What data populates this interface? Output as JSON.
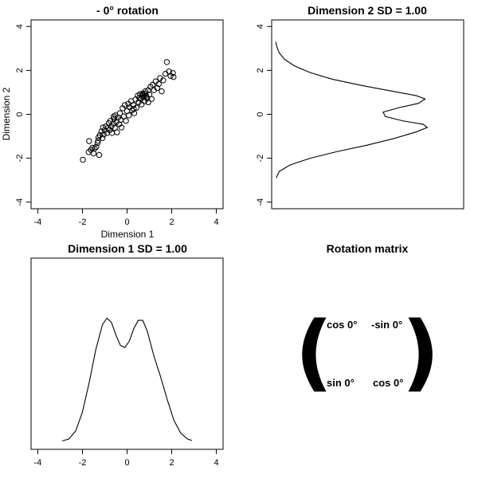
{
  "chart_data": [
    {
      "type": "scatter",
      "title": "-  0° rotation",
      "xlabel": "Dimension 1",
      "ylabel": "Dimension 2",
      "xlim": [
        -4.3,
        4.3
      ],
      "ylim": [
        -4.3,
        4.3
      ],
      "xticks": [
        "-4",
        "-2",
        "0",
        "2",
        "4"
      ],
      "yticks": [
        "-4",
        "-2",
        "0",
        "2",
        "4"
      ],
      "marker": "open-circle",
      "points": [
        [
          -1.98,
          -2.07
        ],
        [
          -1.72,
          -1.72
        ],
        [
          -1.62,
          -1.62
        ],
        [
          -1.7,
          -1.22
        ],
        [
          -1.55,
          -1.52
        ],
        [
          -1.5,
          -1.78
        ],
        [
          -1.45,
          -1.55
        ],
        [
          -1.38,
          -1.48
        ],
        [
          -1.32,
          -1.3
        ],
        [
          -1.28,
          -1.05
        ],
        [
          -1.22,
          -0.95
        ],
        [
          -1.25,
          -1.85
        ],
        [
          -1.15,
          -0.78
        ],
        [
          -1.1,
          -1.08
        ],
        [
          -1.08,
          -0.6
        ],
        [
          -1.05,
          -0.92
        ],
        [
          -1.0,
          -0.72
        ],
        [
          -0.95,
          -0.55
        ],
        [
          -0.9,
          -0.85
        ],
        [
          -0.85,
          -0.62
        ],
        [
          -0.82,
          -0.4
        ],
        [
          -0.78,
          -0.72
        ],
        [
          -0.75,
          -0.3
        ],
        [
          -0.7,
          -0.55
        ],
        [
          -0.68,
          -0.85
        ],
        [
          -0.62,
          -0.42
        ],
        [
          -0.58,
          -0.2
        ],
        [
          -0.55,
          -0.62
        ],
        [
          -0.52,
          -0.05
        ],
        [
          -0.48,
          -0.35
        ],
        [
          -0.45,
          -0.82
        ],
        [
          -0.4,
          -0.15
        ],
        [
          -0.35,
          -0.45
        ],
        [
          -0.32,
          0.05
        ],
        [
          -0.28,
          -0.25
        ],
        [
          -0.2,
          0.28
        ],
        [
          -0.15,
          -0.1
        ],
        [
          -0.1,
          0.42
        ],
        [
          -0.05,
          -0.3
        ],
        [
          0.0,
          0.15
        ],
        [
          0.05,
          0.48
        ],
        [
          0.08,
          -0.05
        ],
        [
          0.12,
          0.32
        ],
        [
          0.18,
          0.6
        ],
        [
          0.22,
          0.18
        ],
        [
          0.28,
          0.42
        ],
        [
          0.32,
          0.05
        ],
        [
          0.38,
          0.68
        ],
        [
          0.42,
          0.3
        ],
        [
          0.48,
          0.85
        ],
        [
          0.52,
          0.55
        ],
        [
          0.58,
          0.92
        ],
        [
          0.62,
          0.7
        ],
        [
          0.65,
          0.45
        ],
        [
          0.7,
          0.95
        ],
        [
          0.75,
          0.8
        ],
        [
          0.78,
          0.6
        ],
        [
          0.82,
          1.05
        ],
        [
          0.85,
          0.85
        ],
        [
          0.9,
          0.72
        ],
        [
          0.95,
          1.1
        ],
        [
          1.0,
          0.9
        ],
        [
          1.05,
          1.25
        ],
        [
          1.1,
          0.7
        ],
        [
          1.15,
          1.35
        ],
        [
          1.2,
          1.1
        ],
        [
          1.28,
          1.5
        ],
        [
          1.35,
          1.2
        ],
        [
          1.42,
          1.38
        ],
        [
          1.48,
          1.65
        ],
        [
          1.55,
          1.05
        ],
        [
          1.62,
          1.55
        ],
        [
          1.72,
          1.85
        ],
        [
          1.78,
          2.38
        ],
        [
          1.88,
          1.95
        ],
        [
          1.95,
          1.75
        ],
        [
          2.05,
          1.88
        ],
        [
          2.08,
          1.7
        ],
        [
          -0.6,
          -0.1
        ],
        [
          0.3,
          0.25
        ],
        [
          0.55,
          0.75
        ],
        [
          -0.25,
          -0.6
        ],
        [
          0.95,
          0.55
        ],
        [
          -1.3,
          -1.2
        ],
        [
          0.72,
          0.9
        ],
        [
          0.88,
          0.78
        ],
        [
          0.8,
          0.95
        ],
        [
          0.68,
          0.82
        ]
      ]
    },
    {
      "type": "line",
      "title": "Dimension 2 SD = 1.00",
      "orientation": "vertical-density",
      "ylim": [
        -4.3,
        4.3
      ],
      "yticks": [
        "-4",
        "-2",
        "0",
        "2",
        "4"
      ],
      "density_value_axis_max": 0.42,
      "y": [
        -2.9,
        -2.6,
        -2.3,
        -2.0,
        -1.7,
        -1.4,
        -1.1,
        -0.8,
        -0.6,
        -0.45,
        -0.3,
        -0.1,
        0.1,
        0.3,
        0.5,
        0.7,
        0.85,
        1.0,
        1.3,
        1.6,
        1.9,
        2.2,
        2.5,
        2.8,
        3.05,
        3.3
      ],
      "density": [
        0.003,
        0.01,
        0.035,
        0.08,
        0.14,
        0.21,
        0.27,
        0.32,
        0.345,
        0.335,
        0.29,
        0.25,
        0.245,
        0.28,
        0.325,
        0.34,
        0.32,
        0.28,
        0.2,
        0.13,
        0.08,
        0.045,
        0.022,
        0.01,
        0.005,
        0.002
      ]
    },
    {
      "type": "line",
      "title": "Dimension 1 SD = 1.00",
      "orientation": "horizontal-density",
      "xlim": [
        -4.3,
        4.3
      ],
      "xticks": [
        "-4",
        "-2",
        "0",
        "2",
        "4"
      ],
      "density_value_axis_max": 0.42,
      "x": [
        -2.9,
        -2.6,
        -2.3,
        -2.0,
        -1.7,
        -1.4,
        -1.1,
        -0.9,
        -0.7,
        -0.5,
        -0.3,
        -0.1,
        0.1,
        0.3,
        0.5,
        0.7,
        0.9,
        1.2,
        1.5,
        1.8,
        2.1,
        2.4,
        2.7,
        2.9
      ],
      "density": [
        0.001,
        0.006,
        0.025,
        0.07,
        0.14,
        0.22,
        0.28,
        0.295,
        0.285,
        0.255,
        0.23,
        0.225,
        0.24,
        0.27,
        0.29,
        0.29,
        0.265,
        0.205,
        0.155,
        0.1,
        0.05,
        0.02,
        0.006,
        0.002
      ]
    }
  ],
  "rotation_matrix": {
    "title": "Rotation matrix",
    "r1c1": "cos  0°",
    "r1c2": "-sin  0°",
    "r2c1": "sin  0°",
    "r2c2": "cos  0°",
    "left_paren": "(",
    "right_paren": ")"
  }
}
